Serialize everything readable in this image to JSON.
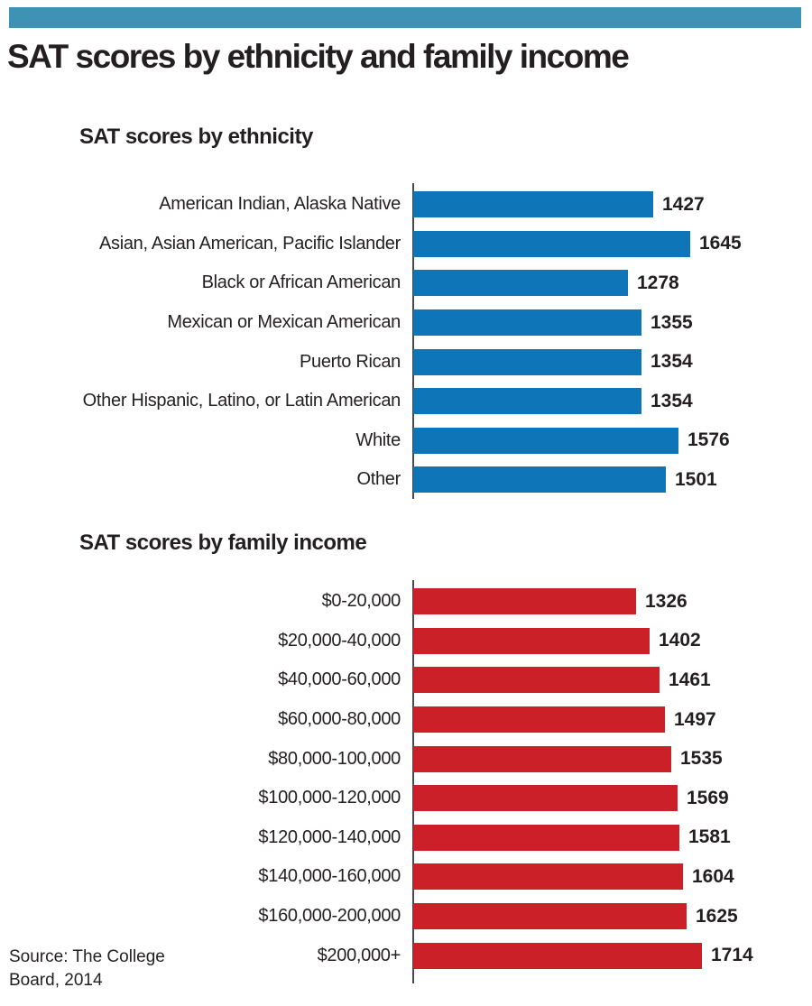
{
  "page": {
    "title": "SAT scores by ethnicity and family income",
    "source_line1": "Source: The College",
    "source_line2": "Board, 2014"
  },
  "colors": {
    "accent_teal": "#3e93b5",
    "bar_blue": "#0e76b8",
    "bar_red": "#cb2027",
    "axis_gray": "#4a4a4c",
    "text_dark": "#231f20"
  },
  "chart_data": [
    {
      "type": "bar",
      "orientation": "horizontal",
      "title": "SAT scores by ethnicity",
      "categories": [
        "American Indian, Alaska Native",
        "Asian, Asian American, Pacific Islander",
        "Black or African American",
        "Mexican or Mexican American",
        "Puerto Rican",
        "Other Hispanic, Latino, or Latin American",
        "White",
        "Other"
      ],
      "values": [
        1427,
        1645,
        1278,
        1355,
        1354,
        1354,
        1576,
        1501
      ],
      "bar_color": "#0e76b8",
      "value_labels": true,
      "xlim": [
        0,
        1800
      ],
      "grid": false,
      "legend": false
    },
    {
      "type": "bar",
      "orientation": "horizontal",
      "title": "SAT scores by family income",
      "categories": [
        "$0-20,000",
        "$20,000-40,000",
        "$40,000-60,000",
        "$60,000-80,000",
        "$80,000-100,000",
        "$100,000-120,000",
        "$120,000-140,000",
        "$140,000-160,000",
        "$160,000-200,000",
        "$200,000+"
      ],
      "values": [
        1326,
        1402,
        1461,
        1497,
        1535,
        1569,
        1581,
        1604,
        1625,
        1714
      ],
      "bar_color": "#cb2027",
      "value_labels": true,
      "xlim": [
        0,
        1800
      ],
      "grid": false,
      "legend": false
    }
  ]
}
